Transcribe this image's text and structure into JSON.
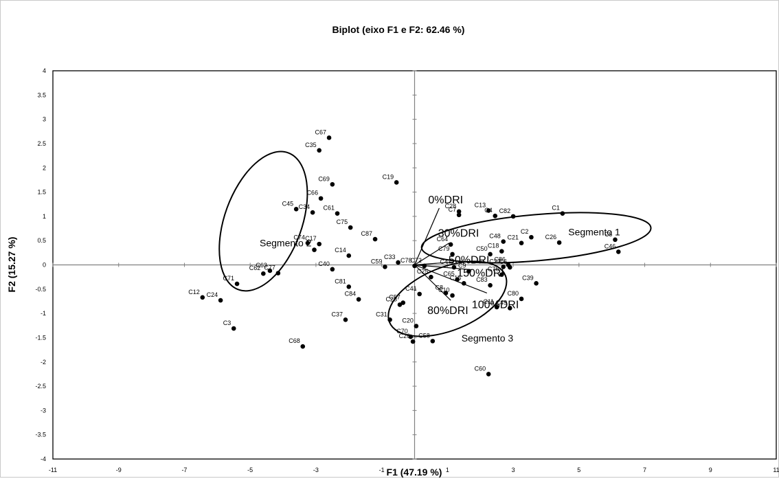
{
  "chart_data": {
    "type": "scatter",
    "title": "Biplot (eixo F1 e F2: 62.46 %)",
    "xlabel": "F1 (47.19 %)",
    "ylabel": "F2 (15.27 %)",
    "xlim": [
      -11,
      11
    ],
    "ylim": [
      -4,
      4
    ],
    "xticks": [
      -11,
      -9,
      -7,
      -5,
      -3,
      -1,
      1,
      3,
      5,
      7,
      9,
      11
    ],
    "yticks": [
      4,
      3.5,
      3,
      2.5,
      2,
      1.5,
      1,
      0.5,
      0,
      -0.5,
      -1,
      -1.5,
      -2,
      -2.5,
      -3,
      -3.5,
      -4
    ],
    "grid": false,
    "observations": [
      {
        "label": "C67",
        "x": -2.6,
        "y": 2.62
      },
      {
        "label": "C35",
        "x": -2.9,
        "y": 2.36
      },
      {
        "label": "C69",
        "x": -2.5,
        "y": 1.66
      },
      {
        "label": "C66",
        "x": -2.85,
        "y": 1.37
      },
      {
        "label": "C45",
        "x": -3.6,
        "y": 1.15
      },
      {
        "label": "C34",
        "x": -3.1,
        "y": 1.08
      },
      {
        "label": "C61",
        "x": -2.35,
        "y": 1.06
      },
      {
        "label": "C75",
        "x": -1.95,
        "y": 0.77
      },
      {
        "label": "C74",
        "x": -3.25,
        "y": 0.45
      },
      {
        "label": "C17",
        "x": -2.9,
        "y": 0.43
      },
      {
        "label": "Segmento 2",
        "x": -3.05,
        "y": 0.31
      },
      {
        "label": "C87",
        "x": -1.2,
        "y": 0.53
      },
      {
        "label": "C14",
        "x": -2.0,
        "y": 0.19
      },
      {
        "label": "C33",
        "x": -0.5,
        "y": 0.05
      },
      {
        "label": "C59",
        "x": -0.9,
        "y": -0.04
      },
      {
        "label": "C40",
        "x": -2.5,
        "y": -0.09
      },
      {
        "label": "C63",
        "x": -4.4,
        "y": -0.12
      },
      {
        "label": "C62",
        "x": -4.6,
        "y": -0.18
      },
      {
        "label": "C77",
        "x": -4.15,
        "y": -0.17
      },
      {
        "label": "C71",
        "x": -5.4,
        "y": -0.39
      },
      {
        "label": "C12",
        "x": -6.45,
        "y": -0.67
      },
      {
        "label": "C24",
        "x": -5.9,
        "y": -0.73
      },
      {
        "label": "C3",
        "x": -5.5,
        "y": -1.31
      },
      {
        "label": "C68",
        "x": -3.4,
        "y": -1.68
      },
      {
        "label": "C81",
        "x": -2.0,
        "y": -0.45
      },
      {
        "label": "C84",
        "x": -1.7,
        "y": -0.71
      },
      {
        "label": "C37",
        "x": -2.1,
        "y": -1.13
      },
      {
        "label": "C57",
        "x": -0.35,
        "y": -0.78
      },
      {
        "label": "C23",
        "x": -0.45,
        "y": -0.82
      },
      {
        "label": "C31",
        "x": -0.75,
        "y": -1.13
      },
      {
        "label": "C20",
        "x": 0.05,
        "y": -1.26
      },
      {
        "label": "C70",
        "x": -0.12,
        "y": -1.48
      },
      {
        "label": "C26",
        "x": -0.05,
        "y": -1.58
      },
      {
        "label": "C58",
        "x": 0.55,
        "y": -1.57
      },
      {
        "label": "C60",
        "x": 2.25,
        "y": -2.25
      },
      {
        "label": "C19",
        "x": -0.55,
        "y": 1.7
      },
      {
        "label": "C28",
        "x": 1.35,
        "y": 1.1
      },
      {
        "label": "C13",
        "x": 2.25,
        "y": 1.12
      },
      {
        "label": "C7",
        "x": 1.35,
        "y": 1.03
      },
      {
        "label": "C82",
        "x": 3.0,
        "y": 1.0
      },
      {
        "label": "C4",
        "x": 2.45,
        "y": 1.01
      },
      {
        "label": "C1",
        "x": 4.5,
        "y": 1.06
      },
      {
        "label": "C2",
        "x": 3.55,
        "y": 0.57
      },
      {
        "label": "C26",
        "x": 4.4,
        "y": 0.46
      },
      {
        "label": "C21",
        "x": 3.25,
        "y": 0.45
      },
      {
        "label": "C5",
        "x": 6.1,
        "y": 0.52
      },
      {
        "label": "C46",
        "x": 6.2,
        "y": 0.27
      },
      {
        "label": "C48",
        "x": 2.7,
        "y": 0.48
      },
      {
        "label": "C18",
        "x": 2.65,
        "y": 0.28
      },
      {
        "label": "C50",
        "x": 2.3,
        "y": 0.22
      },
      {
        "label": "C64",
        "x": 1.1,
        "y": 0.42
      },
      {
        "label": "C79",
        "x": 1.15,
        "y": 0.22
      },
      {
        "label": "C72",
        "x": 0.3,
        "y": -0.02
      },
      {
        "label": "C47",
        "x": 1.2,
        "y": -0.05
      },
      {
        "label": "C78",
        "x": 0.0,
        "y": -0.02
      },
      {
        "label": "C9",
        "x": 1.65,
        "y": -0.13
      },
      {
        "label": "C65",
        "x": 1.3,
        "y": -0.3
      },
      {
        "label": "C16",
        "x": 1.5,
        "y": -0.38
      },
      {
        "label": "C25",
        "x": 0.5,
        "y": -0.25
      },
      {
        "label": "C41",
        "x": 0.15,
        "y": -0.6
      },
      {
        "label": "C10",
        "x": 1.15,
        "y": -0.63
      },
      {
        "label": "C8",
        "x": 0.95,
        "y": -0.58
      },
      {
        "label": "C83",
        "x": 2.3,
        "y": -0.42
      },
      {
        "label": "C76",
        "x": 2.65,
        "y": -0.2
      },
      {
        "label": "C86",
        "x": 2.85,
        "y": 0.0
      },
      {
        "label": "C27",
        "x": 2.7,
        "y": -0.04
      },
      {
        "label": "C6",
        "x": 2.9,
        "y": -0.05
      },
      {
        "label": "C39",
        "x": 3.7,
        "y": -0.38
      },
      {
        "label": "C80",
        "x": 3.25,
        "y": -0.7
      },
      {
        "label": "C11",
        "x": 2.5,
        "y": -0.87
      },
      {
        "label": "C49",
        "x": 2.9,
        "y": -0.89
      }
    ],
    "variables": [
      {
        "label": "0%DRI",
        "x": 0.75,
        "y": 1.17
      },
      {
        "label": "30%DRI",
        "x": 1.05,
        "y": 0.45
      },
      {
        "label": "50%DRI",
        "x": 1.2,
        "y": 0.06
      },
      {
        "label": "150%DRI",
        "x": 1.75,
        "y": -0.1
      },
      {
        "label": "100%DRI",
        "x": 2.2,
        "y": -0.58
      },
      {
        "label": "80%DRI",
        "x": 1.1,
        "y": -0.73
      }
    ],
    "segments": [
      {
        "label": "Segmento 1",
        "cx": 3.7,
        "cy": 0.56,
        "rx": 7.0,
        "ry": 0.95,
        "angle_deg": -5
      },
      {
        "label": "",
        "cx": -4.6,
        "cy": 0.9,
        "rx": 2.35,
        "ry": 3.0,
        "angle_deg": 20
      },
      {
        "label": "Segmento 3",
        "cx": 1.0,
        "cy": -0.7,
        "rx": 3.8,
        "ry": 1.3,
        "angle_deg": -22
      }
    ]
  }
}
